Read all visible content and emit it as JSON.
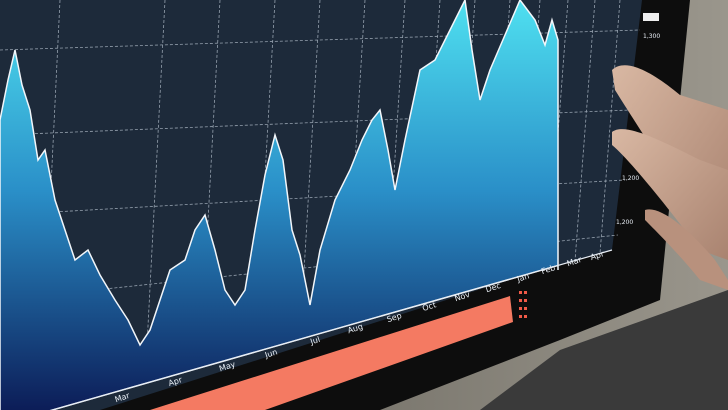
{
  "photo": {
    "subject": "monitor-with-area-chart-and-hand",
    "colors": {
      "screen_bg": "#1d2a3a",
      "area_top": "#3fd0e6",
      "area_bottom": "#0b1a5a",
      "bar": "#f47a62",
      "bezel": "#0d0d0d",
      "wall": "#7d7a72",
      "skin": "#c9a58f"
    }
  },
  "chart": {
    "x_ticks": [
      "Mar",
      "Apr",
      "May",
      "Jun",
      "Jul",
      "Aug",
      "Sep",
      "Oct",
      "Nov",
      "Dec",
      "Jan",
      "Feb",
      "Mar",
      "Apr"
    ],
    "y_ticks": [
      "1,300",
      "1,200",
      "1,200"
    ]
  }
}
